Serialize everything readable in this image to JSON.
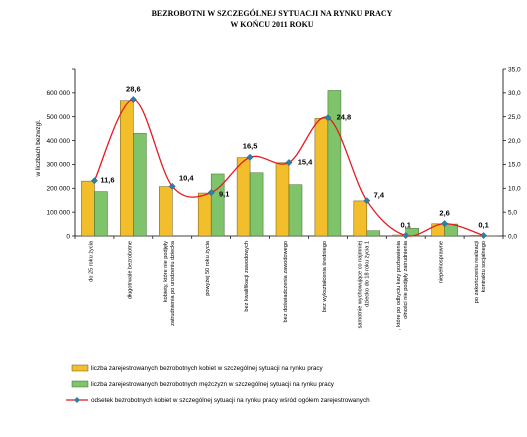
{
  "chart_data": {
    "type": "bar",
    "title": [
      "BEZROBOTNI W  SZCZEGÓLNEJ  SYTUACJI  NA  RYNKU  PRACY",
      "W KOŃCU 2011 ROKU"
    ],
    "ylabel": "w liczbach bezwzgl.",
    "ylim": [
      0,
      700000
    ],
    "y_ticks": [
      "0",
      "100 000",
      "200 000",
      "300 000",
      "400 000",
      "500 000",
      "600 000"
    ],
    "y2lim": [
      0,
      35
    ],
    "y2_ticks": [
      "0,0",
      "5,0",
      "10,0",
      "15,0",
      "20,0",
      "25,0",
      "30,0",
      "35,0"
    ],
    "categories": [
      [
        "do 25 roku życia"
      ],
      [
        "długotrwale bezrobotne"
      ],
      [
        "kobiety, które nie podjęły",
        "zatrudnienia po urodzeniu dziecka"
      ],
      [
        "powyżej 50 roku życia"
      ],
      [
        "bez kwalifikacji zawodowych"
      ],
      [
        "bez doświadczenia zawodowego"
      ],
      [
        "bez wykształcenia średniego"
      ],
      [
        "samotnie wychowujące co najmniej",
        "dziecko do 18 roku życia 1"
      ],
      [
        ", które po odbyciu kary pozbawienia",
        "ołności nie podjęły zatrudnienia"
      ],
      [
        "niepełnosprawne"
      ],
      [
        "po zakończeniu realizacji",
        "kontraktu socjalnego"
      ]
    ],
    "series": [
      {
        "name": "liczba zarejestrowanych bezrobotnych kobiet w szczególnej sytuacji na rynku pracy",
        "kind": "bar",
        "axis": "left",
        "color": "#f2be2c",
        "values": [
          230000,
          567000,
          207000,
          180000,
          328000,
          307000,
          493000,
          147000,
          4000,
          51000,
          2000
        ]
      },
      {
        "name": "liczba zarejestrowanych bezrobotnych mężczyzn w szczególnej sytuacji na rynku pracy",
        "kind": "bar",
        "axis": "left",
        "color": "#7fc36a",
        "values": [
          186000,
          430000,
          0,
          260000,
          265000,
          215000,
          610000,
          22000,
          32000,
          50000,
          1000
        ]
      },
      {
        "name": "odsetek bezrobotnych kobiet w szczególnej sytuacji na rynku pracy  wśród ogółem zarejestrowanych",
        "kind": "line",
        "axis": "right",
        "color": "#e8191e",
        "marker_color": "#2e7fa8",
        "values": [
          11.6,
          28.6,
          10.4,
          9.1,
          16.5,
          15.4,
          24.8,
          7.4,
          0.1,
          2.6,
          0.1
        ],
        "labels": [
          "11,6",
          "28,6",
          "10,4",
          "9,1",
          "16,5",
          "15,4",
          "24,8",
          "7,4",
          "0,1",
          "2,6",
          "0,1"
        ]
      }
    ],
    "grid": false,
    "legend_position": "bottom"
  }
}
